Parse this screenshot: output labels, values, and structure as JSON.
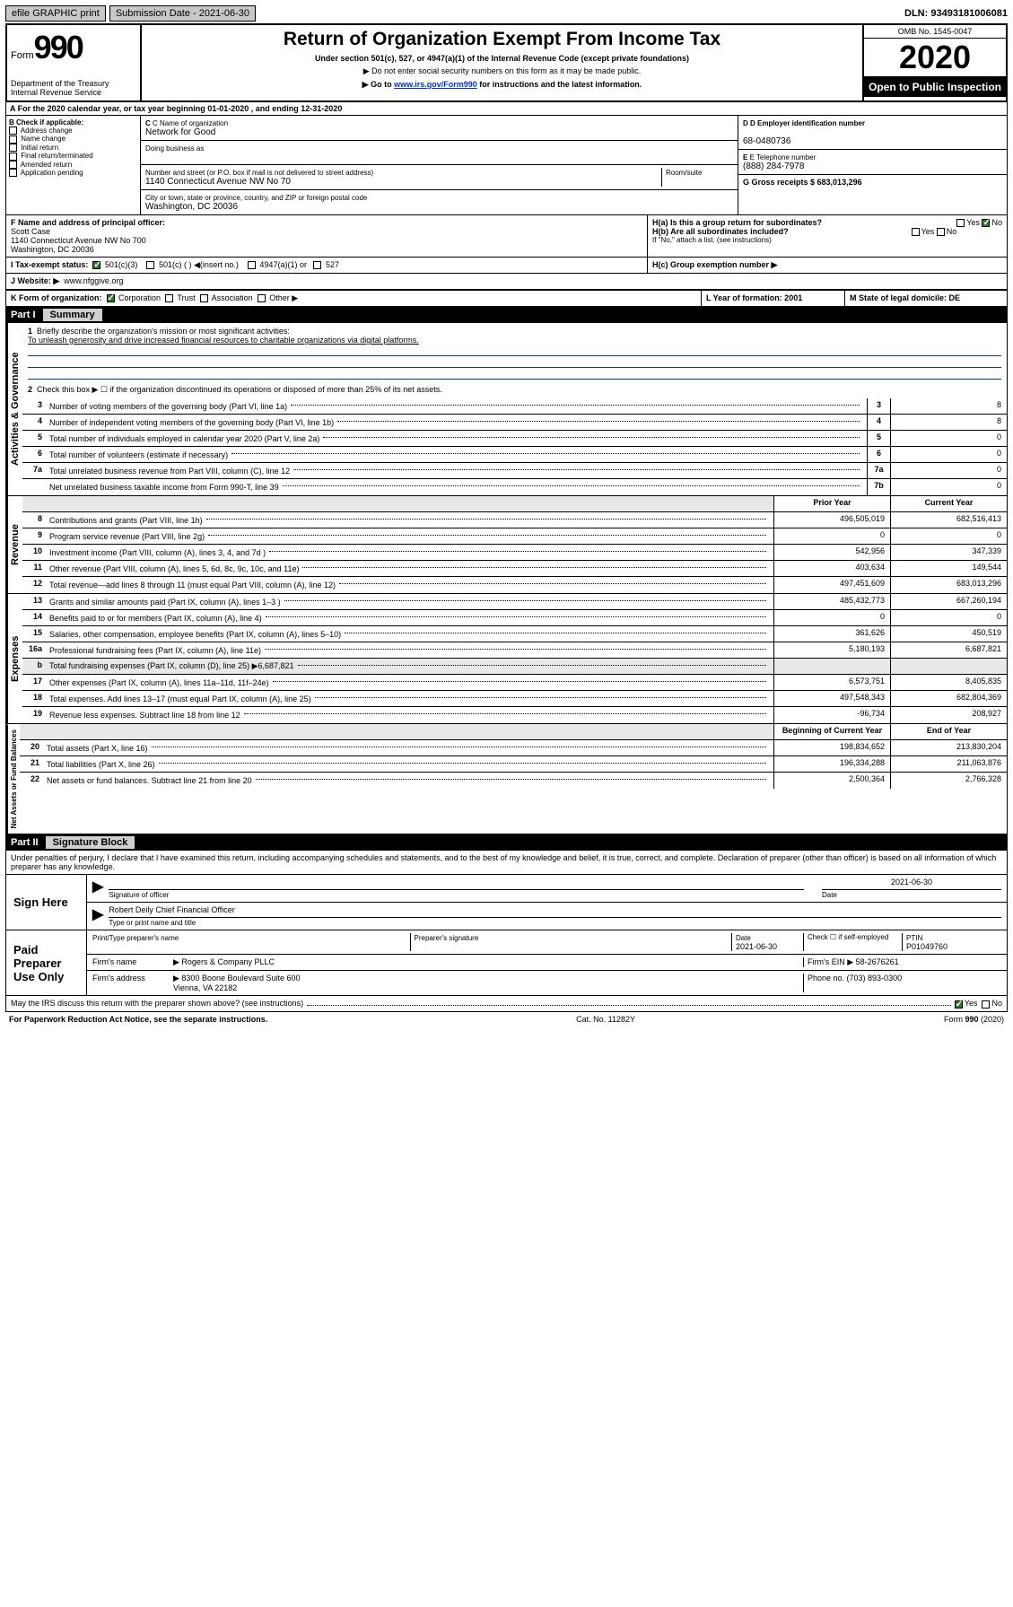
{
  "top": {
    "efile": "efile GRAPHIC print",
    "sub_label": "Submission Date - 2021-06-30",
    "dln_label": "DLN: 93493181006081"
  },
  "header": {
    "form_word": "Form",
    "form_no": "990",
    "title": "Return of Organization Exempt From Income Tax",
    "sub1": "Under section 501(c), 527, or 4947(a)(1) of the Internal Revenue Code (except private foundations)",
    "sub2": "▶ Do not enter social security numbers on this form as it may be made public.",
    "sub3_pre": "▶ Go to ",
    "sub3_link": "www.irs.gov/Form990",
    "sub3_post": " for instructions and the latest information.",
    "dept": "Department of the Treasury\nInternal Revenue Service",
    "omb": "OMB No. 1545-0047",
    "year": "2020",
    "inspect": "Open to Public Inspection"
  },
  "rowA": "A For the 2020 calendar year, or tax year beginning 01-01-2020    , and ending 12-31-2020",
  "boxB": {
    "label": "B Check if applicable:",
    "items": [
      "Address change",
      "Name change",
      "Initial return",
      "Final return/terminated",
      "Amended return",
      "Application pending"
    ]
  },
  "boxC": {
    "name_lbl": "C Name of organization",
    "name": "Network for Good",
    "dba_lbl": "Doing business as",
    "addr_lbl": "Number and street (or P.O. box if mail is not delivered to street address)",
    "room_lbl": "Room/suite",
    "addr": "1140 Connecticut Avenue NW No 70",
    "city_lbl": "City or town, state or province, country, and ZIP or foreign postal code",
    "city": "Washington, DC  20036"
  },
  "boxD": {
    "lbl": "D Employer identification number",
    "val": "68-0480736"
  },
  "boxE": {
    "lbl": "E Telephone number",
    "val": "(888) 284-7978"
  },
  "boxG": {
    "lbl": "G Gross receipts $ 683,013,296"
  },
  "boxF": {
    "lbl": "F  Name and address of principal officer:",
    "name": "Scott Case",
    "addr1": "1140 Connecticut Avenue NW No 700",
    "addr2": "Washington, DC  20036"
  },
  "boxH": {
    "a": "H(a)  Is this a group return for subordinates?",
    "b": "H(b)  Are all subordinates included?",
    "note": "If \"No,\" attach a list. (see instructions)",
    "c": "H(c)  Group exemption number ▶"
  },
  "taxExempt": {
    "lbl": "I   Tax-exempt status:",
    "opts": [
      "501(c)(3)",
      "501(c) (   ) ◀(insert no.)",
      "4947(a)(1) or",
      "527"
    ]
  },
  "boxJ": {
    "lbl": "J   Website: ▶",
    "val": "www.nfggive.org"
  },
  "boxK": {
    "lbl": "K Form of organization:",
    "opts": [
      "Corporation",
      "Trust",
      "Association",
      "Other ▶"
    ]
  },
  "boxL": {
    "lbl": "L Year of formation: 2001"
  },
  "boxM": {
    "lbl": "M State of legal domicile: DE"
  },
  "part1": {
    "hdr_num": "Part I",
    "hdr_title": "Summary",
    "tab1": "Activities & Governance",
    "tab2": "Revenue",
    "tab3": "Expenses",
    "tab4": "Net Assets or Fund Balances",
    "l1": "Briefly describe the organization's mission or most significant activities:",
    "mission": "To unleash generosity and drive increased financial resources to charitable organizations via digital platforms.",
    "l2": "Check this box ▶ ☐  if the organization discontinued its operations or disposed of more than 25% of its net assets.",
    "lines_gov": [
      {
        "n": "3",
        "d": "Number of voting members of the governing body (Part VI, line 1a)",
        "nb": "3",
        "v": "8"
      },
      {
        "n": "4",
        "d": "Number of independent voting members of the governing body (Part VI, line 1b)",
        "nb": "4",
        "v": "8"
      },
      {
        "n": "5",
        "d": "Total number of individuals employed in calendar year 2020 (Part V, line 2a)",
        "nb": "5",
        "v": "0"
      },
      {
        "n": "6",
        "d": "Total number of volunteers (estimate if necessary)",
        "nb": "6",
        "v": "0"
      },
      {
        "n": "7a",
        "d": "Total unrelated business revenue from Part VIII, column (C), line 12",
        "nb": "7a",
        "v": "0"
      },
      {
        "n": "",
        "d": "Net unrelated business taxable income from Form 990-T, line 39",
        "nb": "7b",
        "v": "0"
      }
    ],
    "hdr_prior": "Prior Year",
    "hdr_current": "Current Year",
    "lines_rev": [
      {
        "n": "8",
        "d": "Contributions and grants (Part VIII, line 1h)",
        "v1": "496,505,019",
        "v2": "682,516,413"
      },
      {
        "n": "9",
        "d": "Program service revenue (Part VIII, line 2g)",
        "v1": "0",
        "v2": "0"
      },
      {
        "n": "10",
        "d": "Investment income (Part VIII, column (A), lines 3, 4, and 7d )",
        "v1": "542,956",
        "v2": "347,339"
      },
      {
        "n": "11",
        "d": "Other revenue (Part VIII, column (A), lines 5, 6d, 8c, 9c, 10c, and 11e)",
        "v1": "403,634",
        "v2": "149,544"
      },
      {
        "n": "12",
        "d": "Total revenue—add lines 8 through 11 (must equal Part VIII, column (A), line 12)",
        "v1": "497,451,609",
        "v2": "683,013,296"
      }
    ],
    "lines_exp": [
      {
        "n": "13",
        "d": "Grants and similar amounts paid (Part IX, column (A), lines 1–3 )",
        "v1": "485,432,773",
        "v2": "667,260,194"
      },
      {
        "n": "14",
        "d": "Benefits paid to or for members (Part IX, column (A), line 4)",
        "v1": "0",
        "v2": "0"
      },
      {
        "n": "15",
        "d": "Salaries, other compensation, employee benefits (Part IX, column (A), lines 5–10)",
        "v1": "361,626",
        "v2": "450,519"
      },
      {
        "n": "16a",
        "d": "Professional fundraising fees (Part IX, column (A), line 11e)",
        "v1": "5,180,193",
        "v2": "6,687,821"
      },
      {
        "n": "b",
        "d": "Total fundraising expenses (Part IX, column (D), line 25) ▶6,687,821",
        "v1": "",
        "v2": "",
        "grey": true
      },
      {
        "n": "17",
        "d": "Other expenses (Part IX, column (A), lines 11a–11d, 11f–24e)",
        "v1": "6,573,751",
        "v2": "8,405,835"
      },
      {
        "n": "18",
        "d": "Total expenses. Add lines 13–17 (must equal Part IX, column (A), line 25)",
        "v1": "497,548,343",
        "v2": "682,804,369"
      },
      {
        "n": "19",
        "d": "Revenue less expenses. Subtract line 18 from line 12",
        "v1": "-96,734",
        "v2": "208,927"
      }
    ],
    "hdr_beg": "Beginning of Current Year",
    "hdr_end": "End of Year",
    "lines_net": [
      {
        "n": "20",
        "d": "Total assets (Part X, line 16)",
        "v1": "198,834,652",
        "v2": "213,830,204"
      },
      {
        "n": "21",
        "d": "Total liabilities (Part X, line 26)",
        "v1": "196,334,288",
        "v2": "211,063,876"
      },
      {
        "n": "22",
        "d": "Net assets or fund balances. Subtract line 21 from line 20",
        "v1": "2,500,364",
        "v2": "2,766,328"
      }
    ]
  },
  "part2": {
    "hdr_num": "Part II",
    "hdr_title": "Signature Block",
    "perjury": "Under penalties of perjury, I declare that I have examined this return, including accompanying schedules and statements, and to the best of my knowledge and belief, it is true, correct, and complete. Declaration of preparer (other than officer) is based on all information of which preparer has any knowledge.",
    "sign_here": "Sign Here",
    "sig_officer": "Signature of officer",
    "sig_date": "2021-06-30",
    "date_lbl": "Date",
    "officer_name": "Robert Deily  Chief Financial Officer",
    "type_name_lbl": "Type or print name and title",
    "paid": "Paid Preparer Use Only",
    "prep_name_lbl": "Print/Type preparer's name",
    "prep_sig_lbl": "Preparer's signature",
    "prep_date_lbl": "Date",
    "prep_date": "2021-06-30",
    "check_self": "Check ☐ if self-employed",
    "ptin_lbl": "PTIN",
    "ptin": "P01049760",
    "firm_name_lbl": "Firm's name",
    "firm_name": "▶ Rogers & Company PLLC",
    "firm_ein_lbl": "Firm's EIN ▶ 58-2676261",
    "firm_addr_lbl": "Firm's address",
    "firm_addr": "▶ 8300 Boone Boulevard Suite 600\nVienna, VA  22182",
    "phone_lbl": "Phone no. (703) 893-0300",
    "discuss": "May the IRS discuss this return with the preparer shown above? (see instructions)"
  },
  "footer": {
    "pra": "For Paperwork Reduction Act Notice, see the separate instructions.",
    "cat": "Cat. No. 11282Y",
    "form": "Form 990 (2020)"
  }
}
